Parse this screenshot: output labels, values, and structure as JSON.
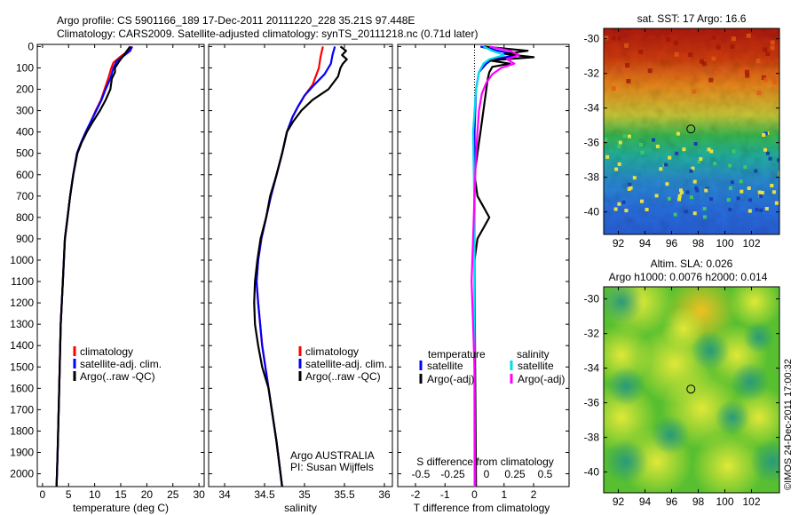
{
  "header": {
    "line1": "Argo profile: CS 5901166_189 17-Dec-2011 20111220_228 35.21S 97.448E",
    "line2": "Climatology: CARS2009. Satellite-adjusted climatology: synTS_20111218.nc (0.71d later)"
  },
  "side_stamp": "©IMOS 24-Dec-2011 17:00:32",
  "colors": {
    "climatology": "#ff0000",
    "satellite": "#0000ff",
    "argo": "#000000",
    "salinity_satellite": "#00ddee",
    "salinity_argo": "#ff00ff"
  },
  "chart_data": [
    {
      "type": "line",
      "id": "temperature",
      "xlabel": "temperature (deg C)",
      "xlim": [
        -1,
        31
      ],
      "ylim": [
        2060,
        -10
      ],
      "xticks": [
        0,
        5,
        10,
        15,
        20,
        25,
        30
      ],
      "yticks": [
        0,
        100,
        200,
        300,
        400,
        500,
        600,
        700,
        800,
        900,
        1000,
        1100,
        1200,
        1300,
        1400,
        1500,
        1600,
        1700,
        1800,
        1900,
        2000
      ],
      "legend": [
        "climatology",
        "satellite-adj. clim.",
        "Argo(..raw -QC)"
      ],
      "series": [
        {
          "name": "climatology",
          "color_key": "climatology",
          "x": [
            17.0,
            16.2,
            14.8,
            13.6,
            13.2,
            12.6,
            11.9,
            11.2,
            10.2,
            9.3,
            8.3,
            7.4,
            6.6,
            5.9,
            5.3,
            4.8,
            4.3,
            3.9,
            3.5,
            3.2,
            2.9,
            2.7
          ],
          "y": [
            0,
            25,
            50,
            75,
            100,
            150,
            200,
            250,
            300,
            350,
            400,
            450,
            500,
            600,
            700,
            800,
            900,
            1100,
            1300,
            1600,
            1900,
            2060
          ]
        },
        {
          "name": "satellite-adj. clim.",
          "color_key": "satellite",
          "x": [
            17.2,
            16.8,
            15.5,
            14.2,
            13.6,
            13.0,
            12.1,
            11.3,
            10.3,
            9.3,
            8.3,
            7.4,
            6.6,
            5.9,
            5.3,
            4.8,
            4.3,
            3.9,
            3.5,
            3.2,
            2.9,
            2.7
          ],
          "y": [
            0,
            20,
            45,
            70,
            100,
            150,
            200,
            250,
            300,
            350,
            400,
            450,
            500,
            600,
            700,
            800,
            900,
            1100,
            1300,
            1600,
            1900,
            2060
          ]
        },
        {
          "name": "Argo(..raw -QC)",
          "color_key": "argo",
          "x": [
            16.8,
            15.6,
            14.7,
            13.9,
            13.9,
            13.3,
            13.0,
            12.1,
            11.0,
            9.7,
            8.5,
            7.5,
            6.7,
            5.9,
            5.3,
            4.8,
            4.3,
            3.9,
            3.5,
            3.2,
            2.9,
            2.7
          ],
          "y": [
            0,
            40,
            70,
            100,
            120,
            150,
            200,
            250,
            300,
            350,
            400,
            450,
            500,
            600,
            700,
            800,
            900,
            1100,
            1300,
            1600,
            1900,
            2060
          ]
        }
      ]
    },
    {
      "type": "line",
      "id": "salinity",
      "xlabel": "salinity",
      "xlim": [
        33.8,
        36.1
      ],
      "ylim": [
        2060,
        -10
      ],
      "xticks": [
        34,
        34.5,
        35,
        35.5,
        36
      ],
      "legend": [
        "climatology",
        "satellite-adj. clim.",
        "Argo(..raw -QC)"
      ],
      "annotation": [
        "Argo AUSTRALIA",
        "PI: Susan Wijffels"
      ],
      "series": [
        {
          "name": "climatology",
          "color_key": "climatology",
          "x": [
            35.23,
            35.2,
            35.18,
            35.15,
            35.1,
            35.0,
            34.92,
            34.85,
            34.78,
            34.72,
            34.65,
            34.58,
            34.52,
            34.46,
            34.42,
            34.4,
            34.42,
            34.47,
            34.55,
            34.65,
            34.72
          ],
          "y": [
            0,
            50,
            100,
            130,
            180,
            230,
            280,
            330,
            400,
            500,
            600,
            700,
            800,
            900,
            1000,
            1100,
            1200,
            1400,
            1600,
            1850,
            2060
          ]
        },
        {
          "name": "satellite-adj. clim.",
          "color_key": "satellite",
          "x": [
            35.38,
            35.35,
            35.33,
            35.25,
            35.12,
            35.0,
            34.92,
            34.85,
            34.78,
            34.72,
            34.65,
            34.58,
            34.52,
            34.46,
            34.42,
            34.4,
            34.42,
            34.47,
            34.55,
            34.65,
            34.72
          ],
          "y": [
            0,
            40,
            80,
            130,
            180,
            230,
            280,
            330,
            400,
            500,
            600,
            700,
            800,
            900,
            1000,
            1100,
            1200,
            1400,
            1600,
            1850,
            2060
          ]
        },
        {
          "name": "Argo(..raw -QC)",
          "color_key": "argo",
          "x": [
            35.45,
            35.52,
            35.47,
            35.53,
            35.48,
            35.45,
            35.42,
            35.3,
            35.1,
            34.96,
            34.86,
            34.78,
            34.72,
            34.65,
            34.57,
            34.52,
            34.45,
            34.41,
            34.38,
            34.37,
            34.38,
            34.42,
            34.47,
            34.55,
            34.65,
            34.72
          ],
          "y": [
            0,
            20,
            40,
            60,
            80,
            100,
            140,
            200,
            250,
            300,
            350,
            400,
            500,
            600,
            700,
            800,
            900,
            1000,
            1100,
            1200,
            1300,
            1400,
            1500,
            1600,
            1850,
            2060
          ]
        }
      ]
    },
    {
      "type": "line",
      "id": "difference",
      "xlabel": "T difference from climatology",
      "xlabel2": "S difference from climatology",
      "xlim": [
        -2.6,
        3.2
      ],
      "ylim": [
        2060,
        -10
      ],
      "xticks": [
        -2,
        -1,
        0,
        1,
        2
      ],
      "xticks2_labels": [
        "-0.5",
        "-0.25",
        "0",
        "0.25",
        "0.5"
      ],
      "legend_titles": [
        "temperature",
        "salinity"
      ],
      "legend": [
        "satellite",
        "Argo(-adj)",
        "satellite",
        "Argo(-adj)"
      ],
      "series": [
        {
          "name": "temperature satellite",
          "color_key": "satellite",
          "x": [
            0.2,
            0.8,
            1.5,
            0.6,
            0.4,
            0.15,
            0.05,
            0,
            0,
            0,
            0,
            0,
            0,
            0
          ],
          "y": [
            0,
            20,
            40,
            60,
            80,
            120,
            200,
            400,
            800,
            1200,
            1500,
            1800,
            2000,
            2060
          ]
        },
        {
          "name": "temperature Argo(-adj)",
          "color_key": "argo",
          "x": [
            0.3,
            1.8,
            1.0,
            2.0,
            0.5,
            1.2,
            0.6,
            0.5,
            0.45,
            0.4,
            0.3,
            0.2,
            0.1,
            0,
            0.1,
            0.3,
            0.5,
            0.3,
            0.1,
            0,
            0.02,
            0.05
          ],
          "y": [
            0,
            20,
            35,
            50,
            65,
            80,
            95,
            120,
            150,
            200,
            300,
            400,
            500,
            600,
            700,
            750,
            800,
            850,
            900,
            1000,
            1500,
            2060
          ]
        },
        {
          "name": "salinity satellite",
          "color_key": "salinity_satellite",
          "x": [
            0.3,
            0.6,
            1.0,
            0.5,
            0.3,
            0.15,
            0.05,
            -0.05,
            0,
            0,
            0,
            0,
            0
          ],
          "y": [
            0,
            20,
            40,
            60,
            80,
            120,
            200,
            400,
            800,
            1200,
            1500,
            1800,
            2060
          ]
        },
        {
          "name": "salinity Argo(-adj)",
          "color_key": "salinity_argo",
          "x": [
            0.5,
            1.2,
            1.5,
            1.1,
            1.35,
            0.9,
            0.6,
            0.4,
            0.25,
            0.15,
            0.1,
            0.05,
            0,
            -0.05,
            -0.1,
            -0.05,
            0,
            0.02
          ],
          "y": [
            0,
            20,
            40,
            60,
            80,
            100,
            130,
            170,
            220,
            300,
            400,
            500,
            700,
            900,
            1100,
            1300,
            1500,
            2060
          ]
        }
      ]
    },
    {
      "type": "heatmap",
      "id": "sst-map",
      "title": "sat. SST: 17 Argo: 16.6",
      "xlim": [
        90.9,
        104.1
      ],
      "ylim": [
        -41.3,
        -29.4
      ],
      "xticks": [
        92,
        94,
        96,
        98,
        100,
        102
      ],
      "yticks": [
        -30,
        -32,
        -34,
        -36,
        -38,
        -40
      ],
      "marker": {
        "x": 97.45,
        "y": -35.21
      }
    },
    {
      "type": "heatmap",
      "id": "sla-map",
      "title": "Altim. SLA: 0.026",
      "subtitle": "Argo h1000: 0.0076 h2000: 0.014",
      "xlim": [
        90.9,
        104.1
      ],
      "ylim": [
        -41.2,
        -29.3
      ],
      "xticks": [
        92,
        94,
        96,
        98,
        100,
        102
      ],
      "yticks": [
        -30,
        -32,
        -34,
        -36,
        -38,
        -40
      ],
      "marker": {
        "x": 97.45,
        "y": -35.21
      }
    }
  ]
}
